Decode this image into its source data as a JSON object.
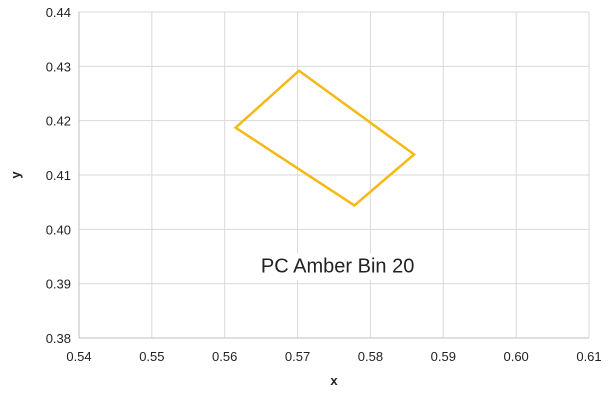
{
  "chart_data": {
    "type": "scatter",
    "title": "",
    "xlabel": "x",
    "ylabel": "y",
    "xlim": [
      0.54,
      0.61
    ],
    "ylim": [
      0.38,
      0.44
    ],
    "x_ticks": [
      "0.54",
      "0.55",
      "0.56",
      "0.57",
      "0.58",
      "0.59",
      "0.60",
      "0.61"
    ],
    "y_ticks": [
      "0.38",
      "0.39",
      "0.40",
      "0.41",
      "0.42",
      "0.43",
      "0.44"
    ],
    "grid": true,
    "series": [
      {
        "name": "",
        "color": "#F5B814",
        "closed": true,
        "points": [
          {
            "x": 0.5615,
            "y": 0.4187
          },
          {
            "x": 0.5702,
            "y": 0.4292
          },
          {
            "x": 0.586,
            "y": 0.4138
          },
          {
            "x": 0.5778,
            "y": 0.4044
          }
        ]
      }
    ],
    "annotations": [
      {
        "text": "PC Amber Bin 20",
        "x": 0.5755,
        "y": 0.3933
      }
    ]
  }
}
